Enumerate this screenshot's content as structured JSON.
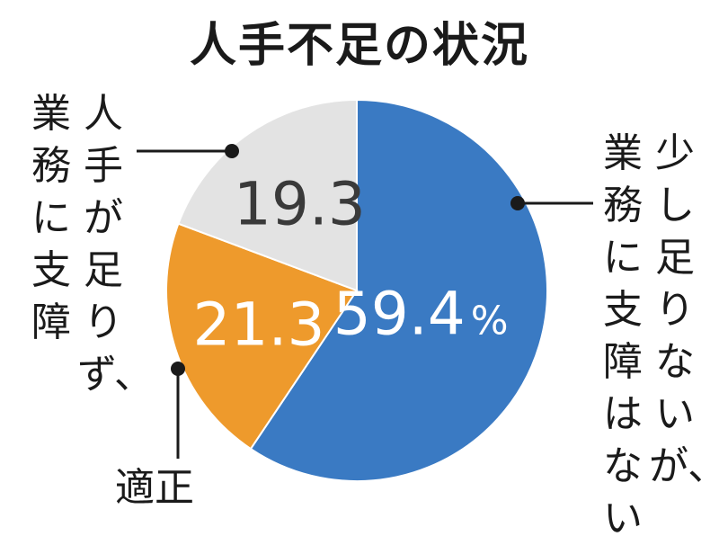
{
  "chart_data": {
    "type": "pie",
    "title": "人手不足の状況",
    "slices": [
      {
        "label": "少し足りないが、業務に支障はない",
        "value": 59.4,
        "display": "59.4",
        "unit": "%",
        "color": "#3a7ac3",
        "text_color": "#ffffff"
      },
      {
        "label": "適正",
        "value": 21.3,
        "display": "21.3",
        "unit": "",
        "color": "#ee9a2c",
        "text_color": "#ffffff"
      },
      {
        "label": "人手が足りず、業務に支障",
        "value": 19.3,
        "display": "19.3",
        "unit": "",
        "color": "#e3e3e3",
        "text_color": "#3a3a3a"
      }
    ]
  },
  "labels": {
    "right_col1": "少し足りないが、",
    "right_col2": "業務に支障はない",
    "left_col1": "人手が足りず、",
    "left_col2": "業務に支障",
    "bottom": "適正"
  }
}
